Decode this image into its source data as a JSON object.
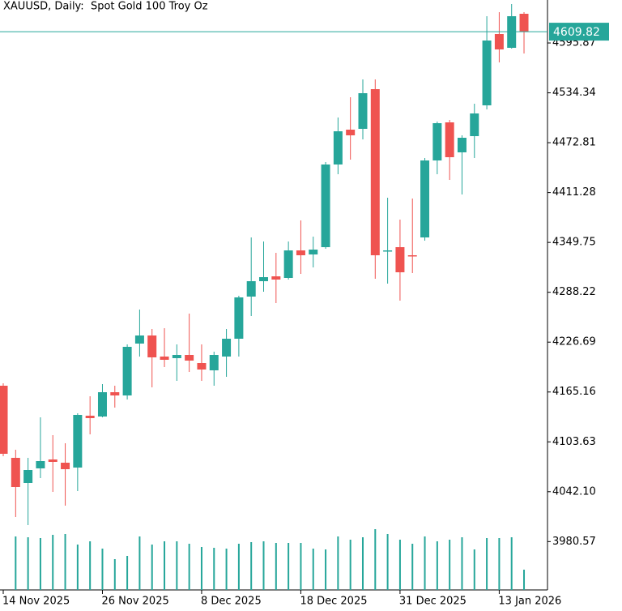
{
  "chart_data": {
    "type": "candlestick",
    "title": "XAUUSD, Daily:  Spot Gold 100 Troy Oz",
    "categories": [
      "14 Nov 2025",
      null,
      null,
      null,
      null,
      null,
      null,
      null,
      "26 Nov 2025",
      null,
      null,
      null,
      null,
      null,
      null,
      null,
      "8 Dec 2025",
      null,
      null,
      null,
      null,
      null,
      null,
      null,
      "18 Dec 2025",
      null,
      null,
      null,
      null,
      null,
      null,
      null,
      "31 Dec 2025",
      null,
      null,
      null,
      null,
      null,
      null,
      null,
      "13 Jan 2026",
      null,
      null
    ],
    "open": [
      4172.9,
      4083.9,
      4052.9,
      4070.9,
      4081.9,
      4077.9,
      4071.9,
      4135.9,
      4134.9,
      4164.9,
      4160.9,
      4224.9,
      4234.9,
      4208.9,
      4206.9,
      4210.9,
      4200.9,
      4191.9,
      4208.9,
      4230.9,
      4282.9,
      4301.9,
      4307.9,
      4305.9,
      4339.9,
      4334.9,
      4343.9,
      4445.9,
      4488.9,
      4489.9,
      4538.9,
      4338.9,
      4343.9,
      4333.9,
      4355.9,
      4450.9,
      4497.9,
      4460.9,
      4480.9,
      4518.9,
      4606.9,
      4589.9,
      4631.9
    ],
    "high": [
      4175.9,
      4093.9,
      4083.9,
      4133.9,
      4111.9,
      4101.9,
      4138.9,
      4159.9,
      4174.9,
      4172.9,
      4223.9,
      4266.9,
      4242.9,
      4243.9,
      4223.9,
      4261.9,
      4223.9,
      4214.9,
      4242.9,
      4283.9,
      4355.9,
      4350.9,
      4336.9,
      4350.9,
      4376.9,
      4356.9,
      4448.9,
      4503.9,
      4528.9,
      4550.9,
      4550.9,
      4404.9,
      4377.9,
      4403.9,
      4453.9,
      4498.9,
      4500.9,
      4481.9,
      4520.9,
      4628.9,
      4633.9,
      4643.9,
      4633.9
    ],
    "low": [
      4085.9,
      4010.9,
      4000.9,
      4058.9,
      4041.9,
      4024.9,
      4042.9,
      4112.9,
      4133.9,
      4145.9,
      4155.9,
      4208.9,
      4170.9,
      4195.9,
      4178.9,
      4189.9,
      4178.9,
      4172.9,
      4183.9,
      4208.9,
      4258.9,
      4288.9,
      4274.9,
      4303.9,
      4310.9,
      4318.9,
      4341.9,
      4433.9,
      4451.9,
      4476.9,
      4304.9,
      4298.9,
      4277.9,
      4311.9,
      4351.9,
      4433.9,
      4426.9,
      4408.9,
      4453.9,
      4513.9,
      4571.9,
      4588.9,
      4582.9
    ],
    "close": [
      4088.9,
      4047.9,
      4068.9,
      4079.9,
      4078.9,
      4069.9,
      4136.9,
      4132.9,
      4164.9,
      4160.9,
      4220.9,
      4234.9,
      4207.9,
      4204.9,
      4210.9,
      4203.9,
      4192.9,
      4210.9,
      4230.9,
      4281.9,
      4301.9,
      4306.9,
      4303.9,
      4339.9,
      4333.9,
      4340.9,
      4445.9,
      4486.9,
      4481.9,
      4533.9,
      4333.9,
      4339.9,
      4312.9,
      4332.9,
      4450.9,
      4496.9,
      4454.9,
      4478.9,
      4508.9,
      4598.9,
      4587.9,
      4628.9,
      4609.82
    ],
    "volume": [
      null,
      66,
      65,
      64,
      68,
      69,
      56,
      60,
      51,
      38,
      42,
      66,
      56,
      60,
      60,
      57,
      53,
      52,
      51,
      57,
      59,
      60,
      58,
      58,
      58,
      51,
      50,
      66,
      62,
      65,
      75,
      69,
      62,
      57,
      66,
      60,
      62,
      65,
      50,
      64,
      64,
      65,
      25
    ],
    "up_color": "#26a69a",
    "down_color": "#ef5350",
    "last_price": 4609.82,
    "ylim": [
      3920.9,
      4648.9
    ],
    "yticks": [
      3980.57,
      {
        "value": 4042.1,
        "label": "4042.10"
      },
      4103.63,
      4165.16,
      4226.69,
      4288.22,
      4349.75,
      4411.28,
      4472.81,
      4534.34,
      4595.87
    ]
  }
}
